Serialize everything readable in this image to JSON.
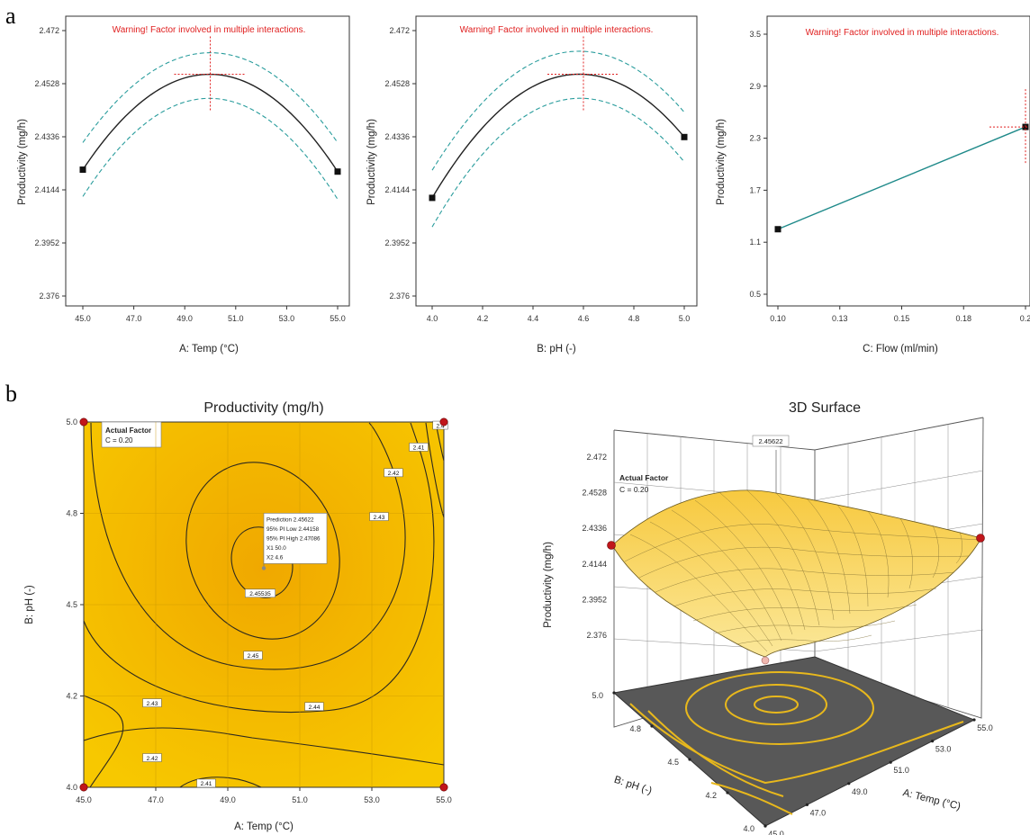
{
  "panels": {
    "a": "a",
    "b": "b"
  },
  "chart_data": [
    {
      "type": "line",
      "id": "temp",
      "warning": "Warning! Factor involved in multiple interactions.",
      "xlabel": "A: Temp (°C)",
      "ylabel": "Productivity (mg/h)",
      "xlim": [
        45.0,
        55.0
      ],
      "ylim": [
        2.376,
        2.472
      ],
      "xticks": [
        "45.0",
        "47.0",
        "49.0",
        "51.0",
        "53.0",
        "55.0"
      ],
      "yticks": [
        "2.376",
        "2.3952",
        "2.4144",
        "2.4336",
        "2.4528",
        "2.472"
      ],
      "marker": {
        "x": 50.0,
        "y": 2.4562
      },
      "series": [
        {
          "role": "prediction",
          "color": "#222222",
          "style": "solid",
          "shape": "quadratic",
          "x": [
            45.0,
            50.0,
            55.0
          ],
          "y": [
            2.4217,
            2.4562,
            2.421
          ]
        },
        {
          "role": "upper-band",
          "color": "#2a9d9d",
          "style": "dashed",
          "shape": "quadratic",
          "x": [
            45.0,
            50.0,
            55.0
          ],
          "y": [
            2.4315,
            2.464,
            2.4315
          ]
        },
        {
          "role": "lower-band",
          "color": "#2a9d9d",
          "style": "dashed",
          "shape": "quadratic",
          "x": [
            45.0,
            50.0,
            55.0
          ],
          "y": [
            2.412,
            2.4475,
            2.411
          ]
        }
      ],
      "endpoints": [
        {
          "x": 45.0,
          "y": 2.4217
        },
        {
          "x": 55.0,
          "y": 2.421
        }
      ]
    },
    {
      "type": "line",
      "id": "ph",
      "warning": "Warning! Factor involved in multiple interactions.",
      "xlabel": "B: pH (-)",
      "ylabel": "Productivity (mg/h)",
      "xlim": [
        4.0,
        5.0
      ],
      "ylim": [
        2.376,
        2.472
      ],
      "xticks": [
        "4.0",
        "4.2",
        "4.4",
        "4.6",
        "4.8",
        "5.0"
      ],
      "yticks": [
        "2.376",
        "2.3952",
        "2.4144",
        "2.4336",
        "2.4528",
        "2.472"
      ],
      "marker": {
        "x": 4.6,
        "y": 2.4562
      },
      "series": [
        {
          "role": "prediction",
          "color": "#222222",
          "style": "solid",
          "shape": "quadratic",
          "x": [
            4.0,
            4.6,
            5.0
          ],
          "y": [
            2.4115,
            2.4562,
            2.4335
          ]
        },
        {
          "role": "upper-band",
          "color": "#2a9d9d",
          "style": "dashed",
          "shape": "quadratic",
          "x": [
            4.0,
            4.6,
            5.0
          ],
          "y": [
            2.4215,
            2.4645,
            2.4425
          ]
        },
        {
          "role": "lower-band",
          "color": "#2a9d9d",
          "style": "dashed",
          "shape": "quadratic",
          "x": [
            4.0,
            4.6,
            5.0
          ],
          "y": [
            2.401,
            2.4475,
            2.4245
          ]
        }
      ],
      "endpoints": [
        {
          "x": 4.0,
          "y": 2.4115
        },
        {
          "x": 5.0,
          "y": 2.4335
        }
      ]
    },
    {
      "type": "line",
      "id": "flow",
      "warning": "Warning! Factor involved in multiple interactions.",
      "xlabel": "C: Flow (ml/min)",
      "ylabel": "Productivity (mg/h)",
      "xlim": [
        0.1,
        0.2
      ],
      "ylim": [
        0.5,
        3.5
      ],
      "xticks": [
        "0.10",
        "0.13",
        "0.15",
        "0.18",
        "0.2"
      ],
      "xtick_values": [
        0.1,
        0.125,
        0.15,
        0.175,
        0.2
      ],
      "yticks": [
        "0.5",
        "1.1",
        "1.7",
        "2.3",
        "2.9",
        "3.5"
      ],
      "marker": {
        "x": 0.2,
        "y": 2.43
      },
      "series": [
        {
          "role": "prediction",
          "color": "#1f8a8a",
          "style": "solid",
          "shape": "linear",
          "x": [
            0.1,
            0.2
          ],
          "y": [
            1.25,
            2.43
          ]
        }
      ],
      "endpoints": [
        {
          "x": 0.1,
          "y": 1.25
        },
        {
          "x": 0.2,
          "y": 2.43
        }
      ]
    },
    {
      "type": "contour",
      "id": "contour",
      "title": "Productivity (mg/h)",
      "xlabel": "A: Temp (°C)",
      "ylabel": "B: pH (-)",
      "xlim": [
        45.0,
        55.0
      ],
      "ylim": [
        4.0,
        5.0
      ],
      "xticks": [
        "45.0",
        "47.0",
        "49.0",
        "51.0",
        "53.0",
        "55.0"
      ],
      "xtick_values": [
        45,
        47,
        49,
        51,
        53,
        55
      ],
      "yticks": [
        "4.0",
        "4.2",
        "4.5",
        "4.8",
        "5.0"
      ],
      "ytick_values": [
        4.0,
        4.25,
        4.5,
        4.75,
        5.0
      ],
      "fill_color": "#f2b800",
      "actual_factor": {
        "title": "Actual Factor",
        "value": "C = 0.20"
      },
      "contour_labels": [
        {
          "text": "2.45535",
          "x": 49.9,
          "y": 4.53
        },
        {
          "text": "2.45",
          "x": 49.7,
          "y": 4.36
        },
        {
          "text": "2.44",
          "x": 51.4,
          "y": 4.22
        },
        {
          "text": "2.43",
          "x": 46.9,
          "y": 4.23
        },
        {
          "text": "2.42",
          "x": 46.9,
          "y": 4.08
        },
        {
          "text": "2.41",
          "x": 48.4,
          "y": 4.01
        },
        {
          "text": "2.43",
          "x": 53.2,
          "y": 4.74
        },
        {
          "text": "2.42",
          "x": 53.6,
          "y": 4.86
        },
        {
          "text": "2.41",
          "x": 54.3,
          "y": 4.93
        },
        {
          "text": "2.4",
          "x": 54.9,
          "y": 4.99
        }
      ],
      "prediction_box": [
        "Prediction  2.45622",
        "95% PI Low  2.44158",
        "95% PI High  2.47086",
        "X1  50.0",
        "X2  4.6"
      ],
      "prediction_point": {
        "x": 50.0,
        "y": 4.6
      },
      "design_points": [
        {
          "x": 45.0,
          "y": 5.0
        },
        {
          "x": 55.0,
          "y": 5.0
        },
        {
          "x": 45.0,
          "y": 4.0
        },
        {
          "x": 55.0,
          "y": 4.0
        }
      ]
    },
    {
      "type": "surface",
      "id": "surface",
      "title": "3D Surface",
      "xlabel": "A: Temp (°C)",
      "ylabel": "B: pH (-)",
      "zlabel": "Productivity (mg/h)",
      "zticks": [
        "2.376",
        "2.3952",
        "2.4144",
        "2.4336",
        "2.4528",
        "2.472"
      ],
      "xticks": [
        "45.0",
        "47.0",
        "49.0",
        "51.0",
        "53.0",
        "55.0"
      ],
      "yticks": [
        "4.0",
        "4.2",
        "4.5",
        "4.8",
        "5.0"
      ],
      "peak_label": "2.45622",
      "actual_factor": {
        "title": "Actual Factor",
        "value": "C = 0.20"
      },
      "surface_color": "#f5d760",
      "floor_color": "#5a5a5a"
    }
  ]
}
